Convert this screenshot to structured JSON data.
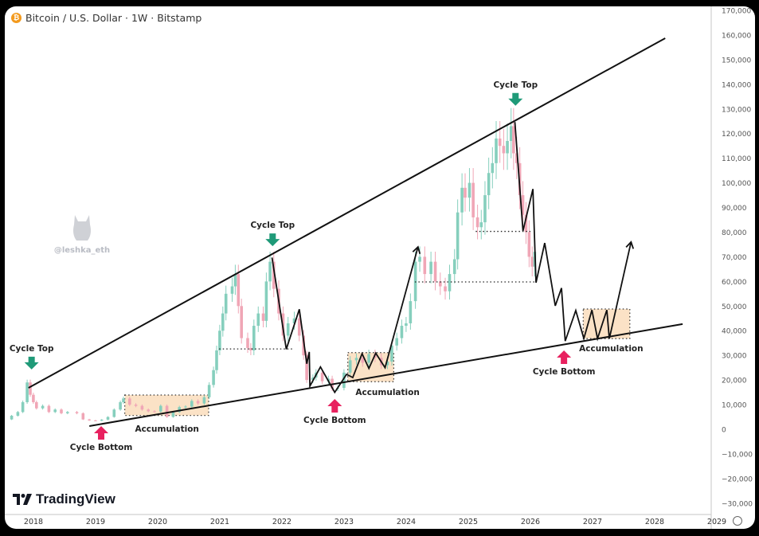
{
  "header": {
    "symbol_title": "Bitcoin / U.S. Dollar · 1W · Bitstamp",
    "symbol_icon": "bitcoin-icon"
  },
  "watermark": {
    "handle": "@leshka_eth",
    "icon": "cat-icon"
  },
  "branding": {
    "logo_text": "TradingView",
    "logo_icon": "tradingview-logo-icon"
  },
  "settings_icon": "gear-icon",
  "colors": {
    "candle_up": "#86cfbd",
    "candle_down": "#f0a6b6",
    "arrow_top": "#1f9a78",
    "arrow_bottom": "#e8215f",
    "zone_fill": "#fbe2c6",
    "lines": "#111111"
  },
  "chart_data": {
    "type": "candlestick",
    "title": "Bitcoin / U.S. Dollar · 1W · Bitstamp",
    "xlim": [
      2017.6,
      2029.3
    ],
    "ylim": [
      -35000,
      172000
    ],
    "x_ticks": [
      "2018",
      "2019",
      "2020",
      "2021",
      "2022",
      "2023",
      "2024",
      "2025",
      "2026",
      "2027",
      "2028",
      "2029"
    ],
    "y_ticks": [
      "170,000",
      "160,000",
      "150,000",
      "140,000",
      "130,000",
      "120,000",
      "110,000",
      "100,000",
      "90,000",
      "80,000",
      "70,000",
      "60,000",
      "50,000",
      "40,000",
      "30,000",
      "20,000",
      "10,000",
      "0",
      "−10,000",
      "−20,000",
      "−30,000"
    ],
    "grid": false,
    "price_approx": [
      [
        2017.6,
        4000
      ],
      [
        2017.7,
        5500
      ],
      [
        2017.8,
        7000
      ],
      [
        2017.88,
        11000
      ],
      [
        2017.95,
        19000
      ],
      [
        2018.0,
        14000
      ],
      [
        2018.05,
        11000
      ],
      [
        2018.1,
        8500
      ],
      [
        2018.2,
        9500
      ],
      [
        2018.3,
        7000
      ],
      [
        2018.4,
        8000
      ],
      [
        2018.5,
        6500
      ],
      [
        2018.6,
        7000
      ],
      [
        2018.75,
        6500
      ],
      [
        2018.85,
        4000
      ],
      [
        2018.95,
        3600
      ],
      [
        2019.05,
        3500
      ],
      [
        2019.15,
        3900
      ],
      [
        2019.25,
        5000
      ],
      [
        2019.35,
        8000
      ],
      [
        2019.45,
        11000
      ],
      [
        2019.5,
        12500
      ],
      [
        2019.6,
        10000
      ],
      [
        2019.7,
        9500
      ],
      [
        2019.8,
        8000
      ],
      [
        2019.9,
        7300
      ],
      [
        2020.0,
        7200
      ],
      [
        2020.1,
        9500
      ],
      [
        2020.2,
        5000
      ],
      [
        2020.3,
        7000
      ],
      [
        2020.4,
        9000
      ],
      [
        2020.5,
        9200
      ],
      [
        2020.6,
        11500
      ],
      [
        2020.7,
        10500
      ],
      [
        2020.8,
        13000
      ],
      [
        2020.88,
        18000
      ],
      [
        2020.95,
        24000
      ],
      [
        2021.0,
        32000
      ],
      [
        2021.05,
        40000
      ],
      [
        2021.1,
        47000
      ],
      [
        2021.15,
        55000
      ],
      [
        2021.25,
        58000
      ],
      [
        2021.3,
        63000
      ],
      [
        2021.35,
        50000
      ],
      [
        2021.4,
        37000
      ],
      [
        2021.5,
        33000
      ],
      [
        2021.55,
        32000
      ],
      [
        2021.6,
        42000
      ],
      [
        2021.67,
        47000
      ],
      [
        2021.75,
        44000
      ],
      [
        2021.8,
        60000
      ],
      [
        2021.86,
        68000
      ],
      [
        2021.92,
        57000
      ],
      [
        2022.0,
        47000
      ],
      [
        2022.07,
        38000
      ],
      [
        2022.15,
        43000
      ],
      [
        2022.25,
        45000
      ],
      [
        2022.33,
        38000
      ],
      [
        2022.4,
        30000
      ],
      [
        2022.45,
        20000
      ],
      [
        2022.55,
        21000
      ],
      [
        2022.6,
        23000
      ],
      [
        2022.7,
        19500
      ],
      [
        2022.8,
        20500
      ],
      [
        2022.86,
        16500
      ],
      [
        2022.95,
        16800
      ],
      [
        2023.05,
        23000
      ],
      [
        2023.15,
        28000
      ],
      [
        2023.25,
        29000
      ],
      [
        2023.35,
        27000
      ],
      [
        2023.45,
        30500
      ],
      [
        2023.55,
        29000
      ],
      [
        2023.65,
        26000
      ],
      [
        2023.75,
        27500
      ],
      [
        2023.82,
        34000
      ],
      [
        2023.9,
        37000
      ],
      [
        2023.98,
        42000
      ],
      [
        2024.05,
        43000
      ],
      [
        2024.12,
        52000
      ],
      [
        2024.2,
        68000
      ],
      [
        2024.27,
        70000
      ],
      [
        2024.35,
        63000
      ],
      [
        2024.45,
        68000
      ],
      [
        2024.52,
        60000
      ],
      [
        2024.6,
        58000
      ],
      [
        2024.68,
        56000
      ],
      [
        2024.75,
        63000
      ],
      [
        2024.83,
        69000
      ],
      [
        2024.88,
        88000
      ],
      [
        2024.95,
        98000
      ],
      [
        2025.0,
        94000
      ],
      [
        2025.07,
        100000
      ],
      [
        2025.13,
        86000
      ],
      [
        2025.2,
        82000
      ],
      [
        2025.26,
        84000
      ],
      [
        2025.32,
        95000
      ],
      [
        2025.38,
        104000
      ],
      [
        2025.44,
        108000
      ],
      [
        2025.5,
        118000
      ],
      [
        2025.56,
        115000
      ],
      [
        2025.62,
        112000
      ],
      [
        2025.68,
        117000
      ],
      [
        2025.74,
        123000
      ],
      [
        2025.78,
        112000
      ],
      [
        2025.83,
        108000
      ],
      [
        2025.88,
        95000
      ],
      [
        2025.93,
        87000
      ],
      [
        2025.98,
        80000
      ],
      [
        2026.03,
        70000
      ],
      [
        2026.08,
        66000
      ],
      [
        2026.12,
        72000
      ]
    ],
    "trendlines": [
      [
        [
          2017.92,
          16800
        ],
        [
          2028.17,
          158700
        ]
      ],
      [
        [
          2018.9,
          1300
        ],
        [
          2028.45,
          42700
        ]
      ]
    ],
    "projections": [
      [
        [
          2021.84,
          69700
        ],
        [
          2022.07,
          32500
        ],
        [
          2022.28,
          48700
        ],
        [
          2022.4,
          26600
        ],
        [
          2022.44,
          31400
        ],
        [
          2022.45,
          17500
        ],
        [
          2022.62,
          25300
        ],
        [
          2022.85,
          15000
        ],
        [
          2023.04,
          22300
        ],
        [
          2023.14,
          21000
        ],
        [
          2023.29,
          30700
        ],
        [
          2023.4,
          24700
        ],
        [
          2023.51,
          30900
        ],
        [
          2023.66,
          25000
        ],
        [
          2024.19,
          74000
        ]
      ],
      [
        [
          2025.75,
          124700
        ],
        [
          2025.88,
          80500
        ],
        [
          2026.04,
          97500
        ],
        [
          2026.09,
          59500
        ],
        [
          2026.23,
          75600
        ],
        [
          2026.4,
          50100
        ],
        [
          2026.5,
          57300
        ],
        [
          2026.56,
          35800
        ],
        [
          2026.73,
          48200
        ],
        [
          2026.86,
          36800
        ],
        [
          2026.99,
          48400
        ],
        [
          2027.08,
          36800
        ],
        [
          2027.23,
          48400
        ],
        [
          2027.27,
          36800
        ],
        [
          2027.62,
          76000
        ]
      ]
    ],
    "levels": [
      [
        2020.99,
        2022.17,
        32600
      ],
      [
        2024.14,
        2026.08,
        59800
      ],
      [
        2025.12,
        2026.0,
        80300
      ]
    ],
    "zones": [
      [
        2019.47,
        2020.82,
        5600,
        13900
      ],
      [
        2023.06,
        2023.8,
        19300,
        31100
      ],
      [
        2026.85,
        2027.6,
        36800,
        48800
      ]
    ],
    "annotations": [
      {
        "text": "Cycle Top",
        "kind": "top",
        "at": [
          2017.97,
          23000
        ]
      },
      {
        "text": "Cycle Top",
        "kind": "top",
        "at": [
          2021.85,
          73000
        ]
      },
      {
        "text": "Cycle Top",
        "kind": "top",
        "at": [
          2025.76,
          130000
        ]
      },
      {
        "text": "Cycle Bottom",
        "kind": "bottom",
        "at": [
          2019.09,
          1300
        ]
      },
      {
        "text": "Cycle Bottom",
        "kind": "bottom",
        "at": [
          2022.85,
          12300
        ]
      },
      {
        "text": "Cycle Bottom",
        "kind": "bottom",
        "at": [
          2026.54,
          32000
        ]
      },
      {
        "text": "Accumulation",
        "kind": "label",
        "at": [
          2020.15,
          0
        ]
      },
      {
        "text": "Accumulation",
        "kind": "label",
        "at": [
          2023.7,
          14900
        ]
      },
      {
        "text": "Accumulation",
        "kind": "label",
        "at": [
          2027.3,
          32600
        ]
      }
    ]
  }
}
